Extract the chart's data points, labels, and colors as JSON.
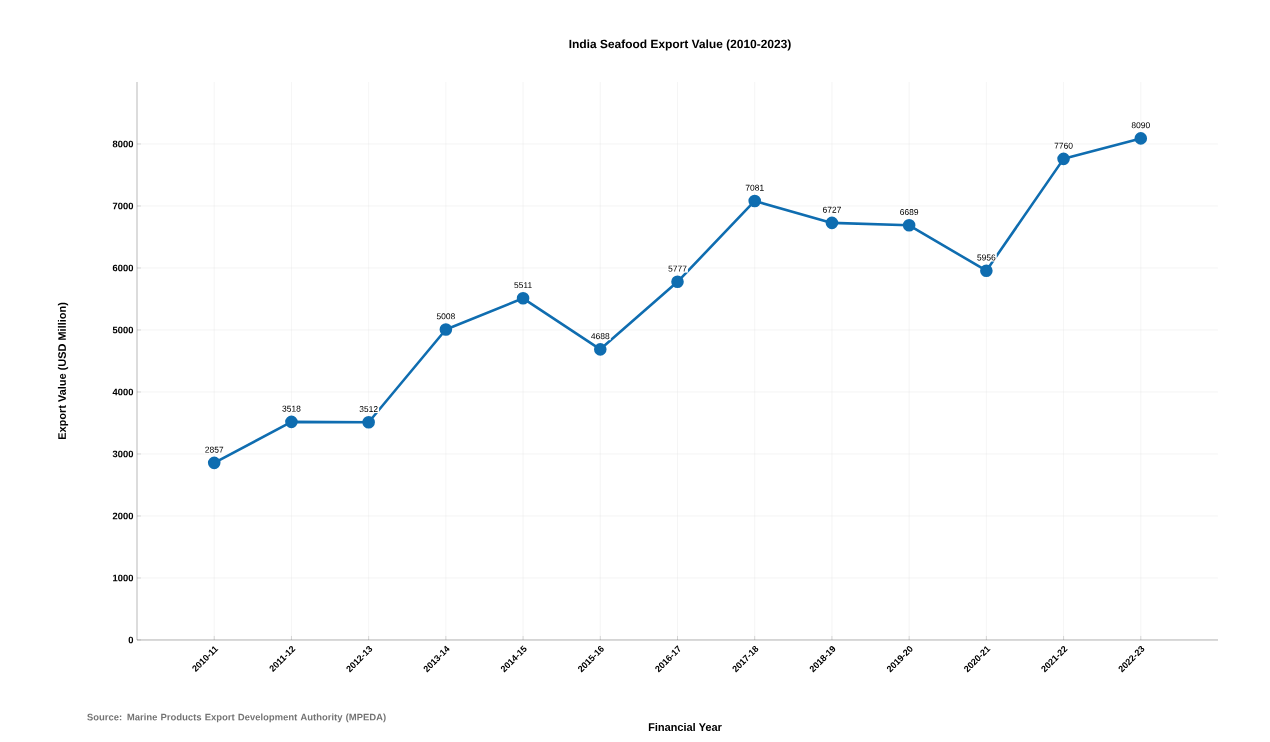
{
  "chart_data": {
    "type": "line",
    "title": "India Seafood Export Value (2010-2023)",
    "xlabel": "Financial Year",
    "ylabel": "Export Value (USD Million)",
    "categories": [
      "2010-11",
      "2011-12",
      "2012-13",
      "2013-14",
      "2014-15",
      "2015-16",
      "2016-17",
      "2017-18",
      "2018-19",
      "2019-20",
      "2020-21",
      "2021-22",
      "2022-23"
    ],
    "values": [
      2857,
      3518,
      3512,
      5008,
      5511,
      4688,
      5777,
      7081,
      6727,
      6689,
      5956,
      7760,
      8090
    ],
    "color": "#0f6db0",
    "marker": "circle",
    "line_style": "solid",
    "data_labels": true,
    "grid": true,
    "ylim": [
      0,
      9000
    ],
    "yticks": [
      0,
      1000,
      2000,
      3000,
      4000,
      5000,
      6000,
      7000,
      8000
    ],
    "annotations": [
      "Source: Marine Products Export Development Authority (MPEDA)"
    ]
  }
}
